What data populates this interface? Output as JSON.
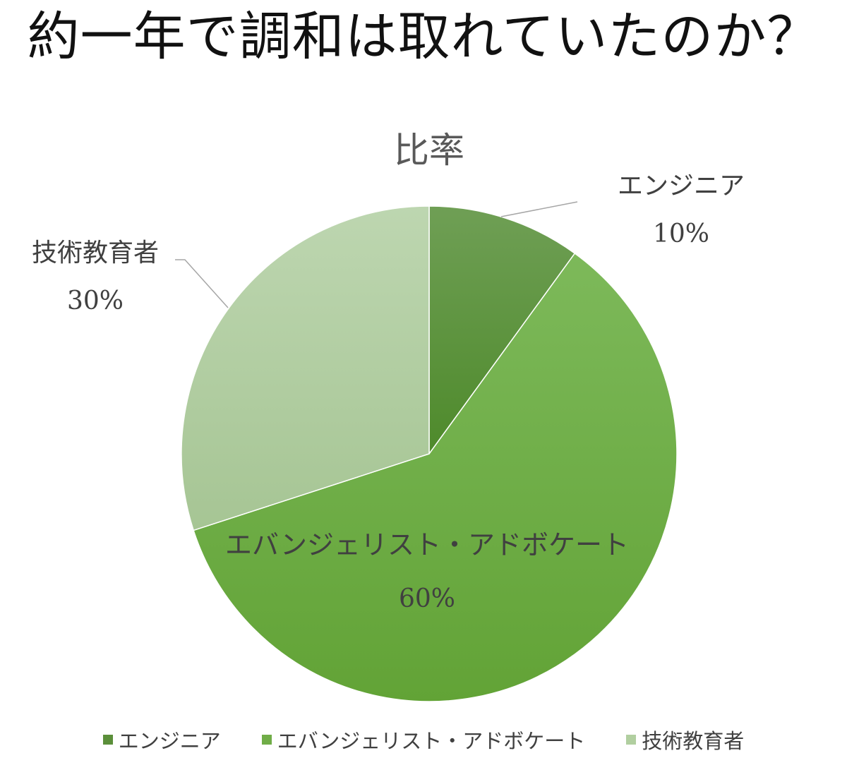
{
  "page": {
    "title": "約一年で調和は取れていたのか？"
  },
  "chart_data": {
    "type": "pie",
    "title": "比率",
    "categories": [
      "エンジニア",
      "エバンジェリスト・アドボケート",
      "技術教育者"
    ],
    "values": [
      10,
      60,
      30
    ],
    "value_labels": [
      "10%",
      "60%",
      "30%"
    ],
    "colors": [
      "#5b8f3a",
      "#70ad47",
      "#b1cfa0"
    ],
    "legend_position": "bottom"
  }
}
